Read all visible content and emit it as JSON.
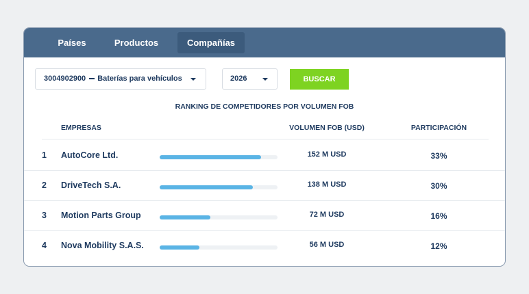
{
  "tabs": [
    {
      "label": "Países"
    },
    {
      "label": "Productos"
    },
    {
      "label": "Compañías",
      "active": true
    }
  ],
  "filters": {
    "product_code": "3004902900",
    "product_name": "Baterías para vehículos",
    "year": "2026",
    "search_label": "BUSCAR"
  },
  "ranking": {
    "title": "RANKING DE COMPETIDORES POR VOLUMEN FOB",
    "headers": {
      "companies": "EMPRESAS",
      "volume": "VOLUMEN FOB (USD)",
      "share": "PARTICIPACIÓN"
    },
    "rows": [
      {
        "rank": "1",
        "name": "AutoCore Ltd.",
        "volume": "152 M USD",
        "share": "33%",
        "bar_fraction": 0.86
      },
      {
        "rank": "2",
        "name": "DriveTech S.A.",
        "volume": "138 M USD",
        "share": "30%",
        "bar_fraction": 0.79
      },
      {
        "rank": "3",
        "name": "Motion Parts Group",
        "volume": "72 M USD",
        "share": "16%",
        "bar_fraction": 0.43
      },
      {
        "rank": "4",
        "name": "Nova Mobility S.A.S.",
        "volume": "56 M USD",
        "share": "12%",
        "bar_fraction": 0.34
      }
    ]
  },
  "colors": {
    "header_bg": "#4a6a8c",
    "active_tab_bg": "#3c5b7c",
    "search_button": "#7ed321",
    "bar_fill": "#5ab4e5",
    "text": "#1e3a5f"
  }
}
